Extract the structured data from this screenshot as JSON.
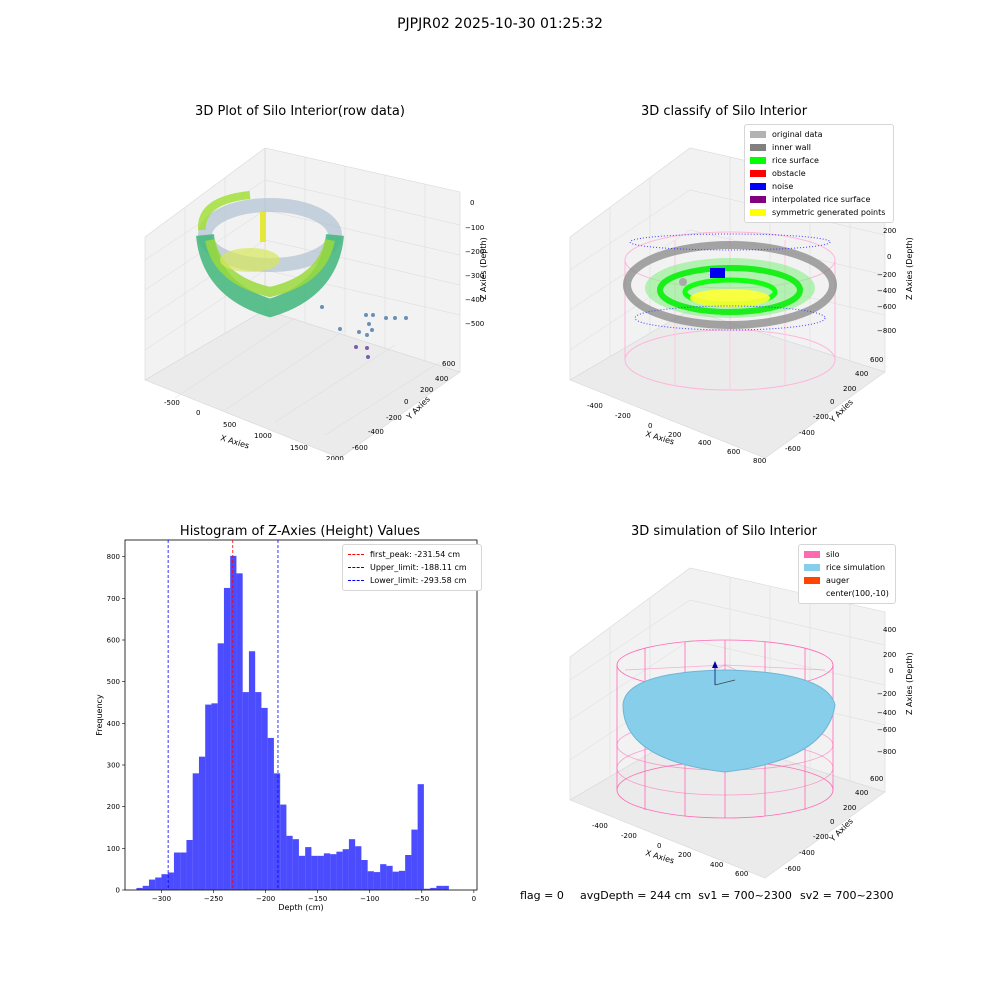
{
  "suptitle": "PJPJR02 2025-10-30 01:25:32",
  "panels": {
    "raw": {
      "title": "3D Plot of Silo Interior(row data)",
      "xlabel": "X Axies",
      "ylabel": "Y Axies",
      "zlabel": "Z Axies (Depth)",
      "xticks": [
        "-500",
        "0",
        "500",
        "1000",
        "1500",
        "2000"
      ],
      "yticks": [
        "600",
        "400",
        "200",
        "0",
        "-200",
        "-400",
        "-600"
      ],
      "zticks": [
        "0",
        "−100",
        "−200",
        "−300",
        "−400",
        "−500"
      ]
    },
    "classify": {
      "title": "3D classify of Silo Interior",
      "xlabel": "X Axies",
      "ylabel": "Y Axies",
      "zlabel": "Z Axies (Depth)",
      "xticks": [
        "-400",
        "-200",
        "0",
        "200",
        "400",
        "600",
        "800"
      ],
      "yticks": [
        "600",
        "400",
        "200",
        "0",
        "-200",
        "-400",
        "-600"
      ],
      "zticks": [
        "200",
        "0",
        "−200",
        "−400",
        "−600",
        "−800"
      ],
      "legend": [
        {
          "label": "original data",
          "color": "#b3b3b3"
        },
        {
          "label": "inner wall",
          "color": "#808080"
        },
        {
          "label": "rice surface",
          "color": "#00ff00"
        },
        {
          "label": "obstacle",
          "color": "#ff0000"
        },
        {
          "label": "noise",
          "color": "#0000ff"
        },
        {
          "label": "interpolated rice surface",
          "color": "#800080"
        },
        {
          "label": "symmetric generated points",
          "color": "#ffff00"
        }
      ]
    },
    "simulation": {
      "title": "3D simulation of Silo Interior",
      "xlabel": "X Axies",
      "ylabel": "Y Axies",
      "zlabel": "Z Axies (Depth)",
      "xticks": [
        "-400",
        "-200",
        "0",
        "200",
        "400",
        "600"
      ],
      "yticks": [
        "600",
        "400",
        "200",
        "0",
        "-200",
        "-400",
        "-600"
      ],
      "zticks": [
        "400",
        "200",
        "0",
        "−200",
        "−400",
        "−600",
        "−800"
      ],
      "legend": [
        {
          "label": "silo",
          "color": "#ff69b4"
        },
        {
          "label": "rice simulation",
          "color": "#87ceeb"
        },
        {
          "label": "auger",
          "color": "#ff4500"
        },
        {
          "label": "center(100,-10)",
          "color": ""
        }
      ]
    }
  },
  "footer": {
    "flag": "flag = 0",
    "avg": "avgDepth = 244 cm  sv1 = 700~2300",
    "sv2": "sv2 = 700~2300"
  },
  "chart_data": [
    {
      "type": "bar",
      "title": "Histogram of Z-Axies (Height) Values",
      "xlabel": "Depth (cm)",
      "ylabel": "Frequency",
      "xlim": [
        -335,
        3
      ],
      "ylim": [
        0,
        840
      ],
      "xticks": [
        -300,
        -250,
        -200,
        -150,
        -100,
        -50,
        0
      ],
      "xtick_labels": [
        "−300",
        "−250",
        "−200",
        "−150",
        "−100",
        "−50",
        "0"
      ],
      "yticks": [
        0,
        100,
        200,
        300,
        400,
        500,
        600,
        700,
        800
      ],
      "color": "#0000ff",
      "bins": [
        {
          "x0": -324,
          "x1": -318,
          "value": 5
        },
        {
          "x0": -318,
          "x1": -312,
          "value": 10
        },
        {
          "x0": -312,
          "x1": -306,
          "value": 25
        },
        {
          "x0": -306,
          "x1": -300,
          "value": 30
        },
        {
          "x0": -300,
          "x1": -294,
          "value": 38
        },
        {
          "x0": -294,
          "x1": -288,
          "value": 42
        },
        {
          "x0": -288,
          "x1": -282,
          "value": 90
        },
        {
          "x0": -282,
          "x1": -276,
          "value": 90
        },
        {
          "x0": -276,
          "x1": -270,
          "value": 120
        },
        {
          "x0": -270,
          "x1": -264,
          "value": 280
        },
        {
          "x0": -264,
          "x1": -258,
          "value": 320
        },
        {
          "x0": -258,
          "x1": -252,
          "value": 445
        },
        {
          "x0": -252,
          "x1": -246,
          "value": 448
        },
        {
          "x0": -246,
          "x1": -240,
          "value": 592
        },
        {
          "x0": -240,
          "x1": -234,
          "value": 725
        },
        {
          "x0": -234,
          "x1": -228,
          "value": 802
        },
        {
          "x0": -228,
          "x1": -222,
          "value": 760
        },
        {
          "x0": -222,
          "x1": -216,
          "value": 475
        },
        {
          "x0": -216,
          "x1": -210,
          "value": 573
        },
        {
          "x0": -210,
          "x1": -204,
          "value": 475
        },
        {
          "x0": -204,
          "x1": -198,
          "value": 437
        },
        {
          "x0": -198,
          "x1": -192,
          "value": 365
        },
        {
          "x0": -192,
          "x1": -186,
          "value": 280
        },
        {
          "x0": -186,
          "x1": -180,
          "value": 205
        },
        {
          "x0": -180,
          "x1": -174,
          "value": 130
        },
        {
          "x0": -174,
          "x1": -168,
          "value": 122
        },
        {
          "x0": -168,
          "x1": -162,
          "value": 82
        },
        {
          "x0": -162,
          "x1": -156,
          "value": 103
        },
        {
          "x0": -156,
          "x1": -150,
          "value": 82
        },
        {
          "x0": -150,
          "x1": -144,
          "value": 82
        },
        {
          "x0": -144,
          "x1": -138,
          "value": 88
        },
        {
          "x0": -138,
          "x1": -132,
          "value": 86
        },
        {
          "x0": -132,
          "x1": -126,
          "value": 92
        },
        {
          "x0": -126,
          "x1": -120,
          "value": 98
        },
        {
          "x0": -120,
          "x1": -114,
          "value": 122
        },
        {
          "x0": -114,
          "x1": -108,
          "value": 105
        },
        {
          "x0": -108,
          "x1": -102,
          "value": 72
        },
        {
          "x0": -102,
          "x1": -96,
          "value": 45
        },
        {
          "x0": -96,
          "x1": -90,
          "value": 43
        },
        {
          "x0": -90,
          "x1": -84,
          "value": 62
        },
        {
          "x0": -84,
          "x1": -78,
          "value": 58
        },
        {
          "x0": -78,
          "x1": -72,
          "value": 44
        },
        {
          "x0": -72,
          "x1": -66,
          "value": 46
        },
        {
          "x0": -66,
          "x1": -60,
          "value": 84
        },
        {
          "x0": -60,
          "x1": -54,
          "value": 145
        },
        {
          "x0": -54,
          "x1": -48,
          "value": 254
        },
        {
          "x0": -48,
          "x1": -42,
          "value": 3
        },
        {
          "x0": -42,
          "x1": -36,
          "value": 5
        },
        {
          "x0": -36,
          "x1": -30,
          "value": 10
        },
        {
          "x0": -30,
          "x1": -24,
          "value": 10
        }
      ],
      "lines": [
        {
          "label": "first_peak: -231.54 cm",
          "x": -231.54,
          "color": "#ff0000"
        },
        {
          "label": "Upper_limit: -188.11 cm",
          "x": -188.11,
          "color": "#0000ff"
        },
        {
          "label": "Lower_limit: -293.58 cm",
          "x": -293.58,
          "color": "#0000ff"
        }
      ],
      "legend_position": "top-right"
    }
  ]
}
